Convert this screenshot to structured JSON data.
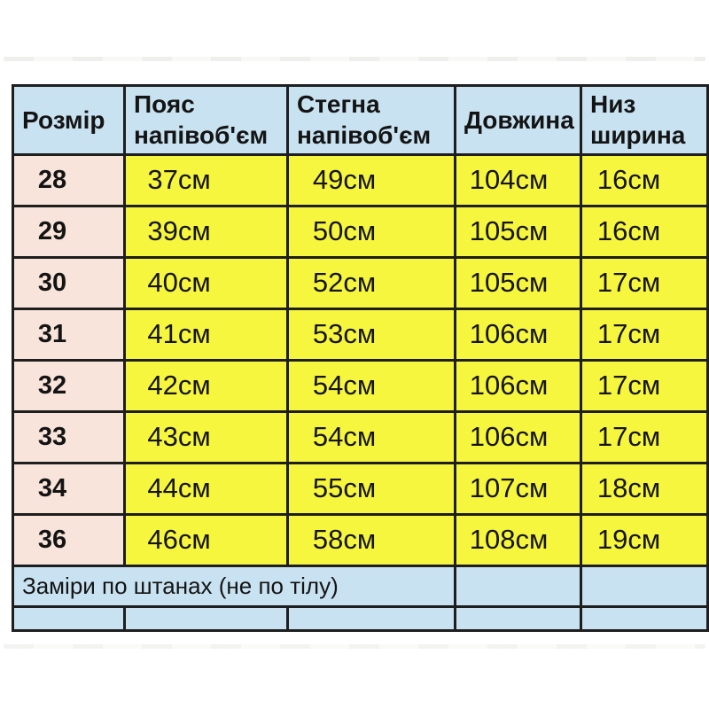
{
  "colors": {
    "page-bg": "#ffffff",
    "blue": "#c8e2f1",
    "yellow": "#f7f63e",
    "pink": "#f8e4da",
    "border": "#1e1e1e",
    "text": "#141414"
  },
  "table": {
    "headers": [
      {
        "line1": "Розмір",
        "line2": ""
      },
      {
        "line1": "Пояс",
        "line2": "напівоб'єм"
      },
      {
        "line1": "Стегна",
        "line2": "напівоб'єм"
      },
      {
        "line1": "Довжина",
        "line2": ""
      },
      {
        "line1": "Низ",
        "line2": "ширина"
      }
    ],
    "rows": [
      {
        "size": "28",
        "waist": "37см",
        "hips": "49см",
        "length": "104см",
        "bottom": "16см"
      },
      {
        "size": "29",
        "waist": "39см",
        "hips": "50см",
        "length": "105см",
        "bottom": "16см"
      },
      {
        "size": "30",
        "waist": "40см",
        "hips": "52см",
        "length": "105см",
        "bottom": "17см"
      },
      {
        "size": "31",
        "waist": "41см",
        "hips": "53см",
        "length": "106см",
        "bottom": "17см"
      },
      {
        "size": "32",
        "waist": "42см",
        "hips": "54см",
        "length": "106см",
        "bottom": "17см"
      },
      {
        "size": "33",
        "waist": "43см",
        "hips": "54см",
        "length": "106см",
        "bottom": "17см"
      },
      {
        "size": "34",
        "waist": "44см",
        "hips": "55см",
        "length": "107см",
        "bottom": "18см"
      },
      {
        "size": "36",
        "waist": "46см",
        "hips": "58см",
        "length": "108см",
        "bottom": "19см"
      }
    ],
    "footer_note": "Заміри по штанах (не по тілу)"
  },
  "chart_data": {
    "type": "table",
    "title": "",
    "columns": [
      "Розмір",
      "Пояс напівоб'єм",
      "Стегна напівоб'єм",
      "Довжина",
      "Низ ширина"
    ],
    "rows": [
      [
        "28",
        "37см",
        "49см",
        "104см",
        "16см"
      ],
      [
        "29",
        "39см",
        "50см",
        "105см",
        "16см"
      ],
      [
        "30",
        "40см",
        "52см",
        "105см",
        "17см"
      ],
      [
        "31",
        "41см",
        "53см",
        "106см",
        "17см"
      ],
      [
        "32",
        "42см",
        "54см",
        "106см",
        "17см"
      ],
      [
        "33",
        "43см",
        "54см",
        "106см",
        "17см"
      ],
      [
        "34",
        "44см",
        "55см",
        "107см",
        "18см"
      ],
      [
        "36",
        "46см",
        "58см",
        "108см",
        "19см"
      ]
    ],
    "values_numeric": {
      "sizes": [
        28,
        29,
        30,
        31,
        32,
        33,
        34,
        36
      ],
      "waist_half_cm": [
        37,
        39,
        40,
        41,
        42,
        43,
        44,
        46
      ],
      "hips_half_cm": [
        49,
        50,
        52,
        53,
        54,
        54,
        55,
        58
      ],
      "length_cm": [
        104,
        105,
        105,
        106,
        106,
        106,
        107,
        108
      ],
      "bottom_width_cm": [
        16,
        16,
        17,
        17,
        17,
        17,
        18,
        19
      ]
    },
    "footnote": "Заміри по штанах (не по тілу)",
    "units": "см"
  }
}
